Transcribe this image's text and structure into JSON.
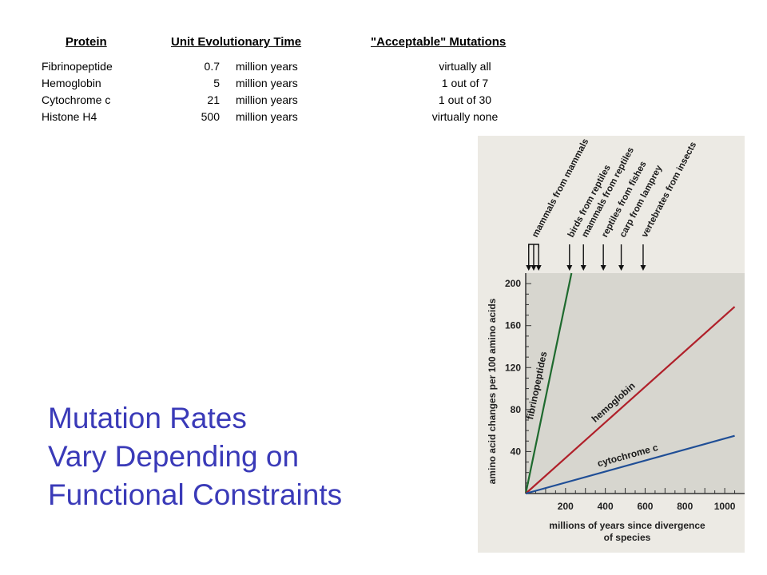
{
  "table": {
    "headers": [
      "Protein",
      "Unit Evolutionary Time",
      "\"Acceptable\" Mutations"
    ],
    "rows": [
      {
        "protein": "Fibrinopeptide",
        "time": "0.7",
        "unit": "million years",
        "acceptable": "virtually all"
      },
      {
        "protein": "Hemoglobin",
        "time": "5",
        "unit": "million years",
        "acceptable": "1 out of 7"
      },
      {
        "protein": "Cytochrome c",
        "time": "21",
        "unit": "million years",
        "acceptable": "1 out of 30"
      },
      {
        "protein": "Histone H4",
        "time": "500",
        "unit": "million years",
        "acceptable": "virtually none"
      }
    ]
  },
  "slide_title": {
    "line1": "Mutation Rates",
    "line2": "Vary Depending on",
    "line3": "Functional Constraints"
  },
  "chart_data": {
    "type": "line",
    "xlabel_line1": "millions of years since divergence",
    "xlabel_line2": "of species",
    "ylabel": "amino acid changes per 100 amino acids",
    "xlim": [
      0,
      1100
    ],
    "ylim": [
      0,
      210
    ],
    "x_ticks": [
      200,
      400,
      600,
      800,
      1000
    ],
    "y_ticks": [
      40,
      80,
      120,
      160,
      200
    ],
    "series": [
      {
        "name": "fibrinopeptides",
        "color": "#1e6a2e",
        "x": [
          0,
          230
        ],
        "y": [
          0,
          210
        ]
      },
      {
        "name": "hemoglobin",
        "color": "#b0202a",
        "x": [
          0,
          1050
        ],
        "y": [
          0,
          178
        ]
      },
      {
        "name": "cytochrome c",
        "color": "#1f4e96",
        "x": [
          0,
          1050
        ],
        "y": [
          0,
          55
        ]
      }
    ],
    "annotations": [
      {
        "label": "mammals from mammals",
        "x": 40
      },
      {
        "label": "birds from reptiles",
        "x": 220
      },
      {
        "label": "mammals from reptiles",
        "x": 290
      },
      {
        "label": "reptiles from fishes",
        "x": 390
      },
      {
        "label": "carp from lamprey",
        "x": 480
      },
      {
        "label": "vertebrates from insects",
        "x": 590
      }
    ],
    "annotation_arrow_x": [
      15,
      40,
      65,
      220,
      290,
      390,
      480,
      590
    ],
    "colors": {
      "plot_bg": "#d7d6cf",
      "panel_bg": "#eceae4"
    }
  }
}
